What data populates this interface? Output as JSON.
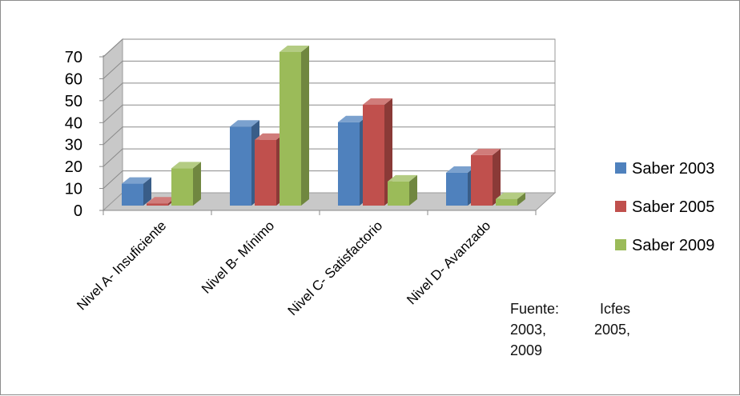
{
  "chart_data": {
    "type": "bar",
    "three_d": true,
    "categories": [
      "Nivel A- Insuficiente",
      "Nivel B- Mínimo",
      "Nivel C- Satisfactorio",
      "Nivel D- Avanzado"
    ],
    "series": [
      {
        "name": "Saber 2003",
        "color": "#4f81bd",
        "values": [
          10,
          36,
          38,
          15
        ]
      },
      {
        "name": "Saber 2005",
        "color": "#c0504d",
        "values": [
          1,
          30,
          46,
          23
        ]
      },
      {
        "name": "Saber 2009",
        "color": "#9bbb59",
        "values": [
          17,
          70,
          11,
          3
        ]
      }
    ],
    "yticks": [
      0,
      10,
      20,
      30,
      40,
      50,
      60,
      70
    ],
    "ylim": [
      0,
      70
    ],
    "grid": true,
    "legend_position": "right"
  },
  "source_note": {
    "line1": [
      "Fuente:",
      "Icfes"
    ],
    "line2": [
      "2003,",
      "2005,"
    ],
    "line3": [
      "2009"
    ]
  }
}
